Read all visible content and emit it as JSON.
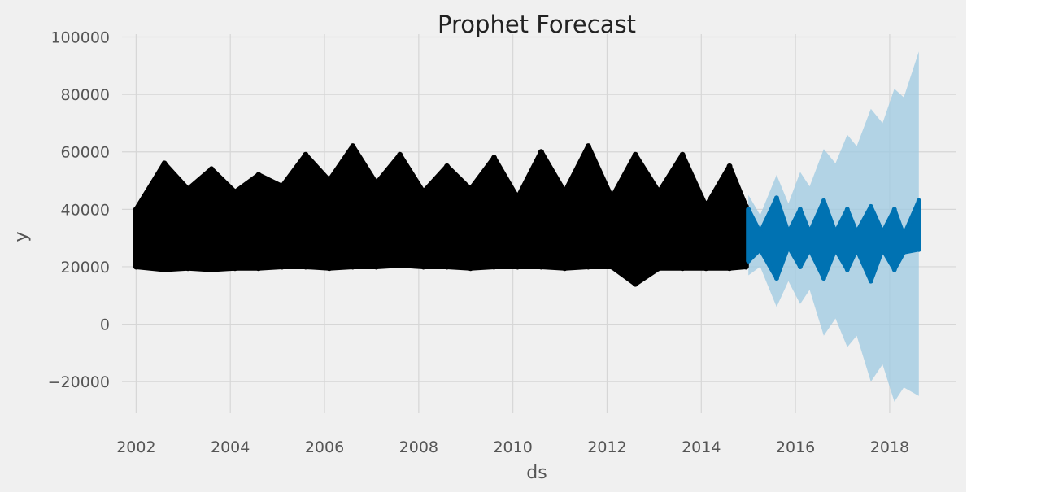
{
  "chart_data": {
    "type": "line",
    "title": "Prophet Forecast",
    "xlabel": "ds",
    "ylabel": "y",
    "xlim": [
      2001.7,
      2019.4
    ],
    "ylim": [
      -31000,
      101000
    ],
    "x_ticks": [
      2002,
      2004,
      2006,
      2008,
      2010,
      2012,
      2014,
      2016,
      2018
    ],
    "y_ticks": [
      -20000,
      0,
      20000,
      40000,
      60000,
      80000,
      100000
    ],
    "y_tick_labels": [
      "−20000",
      "0",
      "20000",
      "40000",
      "60000",
      "80000",
      "100000"
    ],
    "grid": true,
    "series": [
      {
        "role": "observed",
        "color": "#000000",
        "x": [
          2002.0,
          2002.6,
          2003.1,
          2003.6,
          2004.1,
          2004.6,
          2005.1,
          2005.6,
          2006.1,
          2006.6,
          2007.1,
          2007.6,
          2008.1,
          2008.6,
          2009.1,
          2009.6,
          2010.1,
          2010.6,
          2011.1,
          2011.6,
          2012.1,
          2012.6,
          2013.1,
          2013.6,
          2014.1,
          2014.6,
          2014.95
        ],
        "y_max": [
          40000,
          56000,
          47000,
          54000,
          46000,
          52000,
          48000,
          59000,
          50000,
          62000,
          49000,
          59000,
          46000,
          55000,
          47000,
          58000,
          44000,
          60000,
          46000,
          62000,
          44000,
          59000,
          46000,
          59000,
          41000,
          55000,
          41000
        ],
        "y_min": [
          20000,
          19000,
          19500,
          19000,
          19500,
          19500,
          20000,
          20000,
          19500,
          20000,
          20000,
          20500,
          20000,
          20000,
          19500,
          20000,
          20000,
          20000,
          19500,
          20000,
          20000,
          14000,
          19500,
          19500,
          19500,
          19500,
          20000
        ]
      },
      {
        "role": "forecast",
        "color": "#0072b2",
        "x": [
          2015.0,
          2015.25,
          2015.6,
          2015.85,
          2016.1,
          2016.3,
          2016.6,
          2016.85,
          2017.1,
          2017.3,
          2017.6,
          2017.85,
          2018.1,
          2018.3,
          2018.62
        ],
        "y_max": [
          40000,
          32000,
          44000,
          32000,
          40000,
          32000,
          43000,
          32000,
          40000,
          32000,
          41000,
          32000,
          40000,
          31000,
          43000
        ],
        "y_min": [
          22000,
          26000,
          16000,
          27000,
          20000,
          26000,
          16000,
          26000,
          19000,
          26000,
          15000,
          26000,
          19000,
          25000,
          26000
        ]
      },
      {
        "role": "uncertainty-interval",
        "color": "#9ecae1",
        "x": [
          2015.0,
          2015.25,
          2015.6,
          2015.85,
          2016.1,
          2016.3,
          2016.6,
          2016.85,
          2017.1,
          2017.3,
          2017.6,
          2017.85,
          2018.1,
          2018.3,
          2018.62
        ],
        "y_upper": [
          45000,
          38000,
          52000,
          42000,
          53000,
          48000,
          61000,
          56000,
          66000,
          62000,
          75000,
          70000,
          82000,
          79000,
          95000
        ],
        "y_lower": [
          17000,
          20000,
          6000,
          15000,
          7000,
          12000,
          -4000,
          2000,
          -8000,
          -4000,
          -20000,
          -14000,
          -27000,
          -22000,
          -25000
        ]
      }
    ]
  }
}
